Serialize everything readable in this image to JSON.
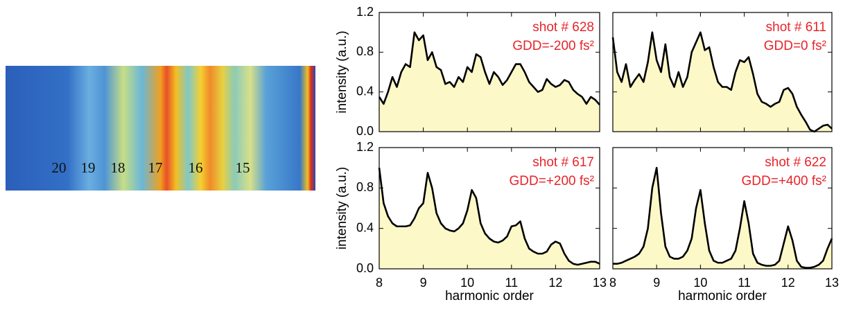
{
  "image": {
    "labels": [
      "20",
      "19",
      "18",
      "17",
      "16",
      "15"
    ]
  },
  "chart_data": [
    {
      "type": "area",
      "annotations": [
        "shot # 628",
        "GDD=-200 fs²"
      ],
      "ylabel": "intensity (a.u.)",
      "color": "#000000",
      "fill": "#fdf8c8",
      "xlim": [
        8,
        13
      ],
      "ylim": [
        0,
        1.2
      ],
      "yticks": [
        {
          "value": 0,
          "label": "0.0"
        },
        {
          "value": 0.4,
          "label": "0.4"
        },
        {
          "value": 0.8,
          "label": "0.8"
        },
        {
          "value": 1.2,
          "label": "1.2"
        }
      ],
      "x": [
        8,
        8.1,
        8.2,
        8.3,
        8.4,
        8.5,
        8.6,
        8.7,
        8.8,
        8.9,
        9,
        9.1,
        9.2,
        9.3,
        9.4,
        9.5,
        9.6,
        9.7,
        9.8,
        9.9,
        10,
        10.1,
        10.2,
        10.3,
        10.4,
        10.5,
        10.6,
        10.7,
        10.8,
        10.9,
        11,
        11.1,
        11.2,
        11.3,
        11.4,
        11.5,
        11.6,
        11.7,
        11.8,
        11.9,
        12,
        12.1,
        12.2,
        12.3,
        12.4,
        12.5,
        12.6,
        12.7,
        12.8,
        12.9,
        13
      ],
      "values": [
        0.35,
        0.28,
        0.4,
        0.55,
        0.45,
        0.6,
        0.68,
        0.65,
        1.0,
        0.92,
        0.97,
        0.72,
        0.8,
        0.65,
        0.62,
        0.48,
        0.5,
        0.45,
        0.55,
        0.5,
        0.65,
        0.6,
        0.78,
        0.75,
        0.6,
        0.48,
        0.6,
        0.55,
        0.47,
        0.52,
        0.6,
        0.68,
        0.68,
        0.6,
        0.5,
        0.45,
        0.4,
        0.42,
        0.53,
        0.48,
        0.45,
        0.47,
        0.52,
        0.5,
        0.42,
        0.38,
        0.35,
        0.28,
        0.35,
        0.32,
        0.27
      ]
    },
    {
      "type": "area",
      "annotations": [
        "shot # 611",
        "GDD=0 fs²"
      ],
      "color": "#000000",
      "fill": "#fdf8c8",
      "xlim": [
        8,
        13
      ],
      "ylim": [
        0,
        1.2
      ],
      "x": [
        8,
        8.1,
        8.2,
        8.3,
        8.4,
        8.5,
        8.6,
        8.7,
        8.8,
        8.9,
        9,
        9.1,
        9.2,
        9.3,
        9.4,
        9.5,
        9.6,
        9.7,
        9.8,
        9.9,
        10,
        10.1,
        10.2,
        10.3,
        10.4,
        10.5,
        10.6,
        10.7,
        10.8,
        10.9,
        11,
        11.1,
        11.2,
        11.3,
        11.4,
        11.5,
        11.6,
        11.7,
        11.8,
        11.9,
        12,
        12.1,
        12.2,
        12.3,
        12.4,
        12.5,
        12.6,
        12.7,
        12.8,
        12.9,
        13
      ],
      "values": [
        0.95,
        0.6,
        0.5,
        0.68,
        0.45,
        0.52,
        0.58,
        0.5,
        0.7,
        1.0,
        0.72,
        0.6,
        0.88,
        0.55,
        0.45,
        0.6,
        0.45,
        0.55,
        0.8,
        0.9,
        1.0,
        0.82,
        0.85,
        0.65,
        0.5,
        0.45,
        0.45,
        0.42,
        0.6,
        0.72,
        0.7,
        0.75,
        0.58,
        0.38,
        0.3,
        0.28,
        0.25,
        0.28,
        0.3,
        0.42,
        0.44,
        0.38,
        0.25,
        0.17,
        0.1,
        0.02,
        0.0,
        0.03,
        0.06,
        0.07,
        0.03
      ]
    },
    {
      "type": "area",
      "annotations": [
        "shot # 617",
        "GDD=+200 fs²"
      ],
      "ylabel": "intensity (a.u.)",
      "xlabel": "harmonic order",
      "color": "#000000",
      "fill": "#fdf8c8",
      "xlim": [
        8,
        13
      ],
      "ylim": [
        0,
        1.2
      ],
      "yticks": [
        {
          "value": 0,
          "label": "0.0"
        },
        {
          "value": 0.4,
          "label": "0.4"
        },
        {
          "value": 0.8,
          "label": "0.8"
        },
        {
          "value": 1.2,
          "label": "1.2"
        }
      ],
      "xticks": [
        8,
        9,
        10,
        11,
        12,
        13
      ],
      "x": [
        8,
        8.1,
        8.2,
        8.3,
        8.4,
        8.5,
        8.6,
        8.7,
        8.8,
        8.9,
        9,
        9.1,
        9.2,
        9.3,
        9.4,
        9.5,
        9.6,
        9.7,
        9.8,
        9.9,
        10,
        10.1,
        10.2,
        10.3,
        10.4,
        10.5,
        10.6,
        10.7,
        10.8,
        10.9,
        11,
        11.1,
        11.2,
        11.3,
        11.4,
        11.5,
        11.6,
        11.7,
        11.8,
        11.9,
        12,
        12.1,
        12.2,
        12.3,
        12.4,
        12.5,
        12.6,
        12.7,
        12.8,
        12.9,
        13
      ],
      "values": [
        1.0,
        0.65,
        0.52,
        0.45,
        0.42,
        0.42,
        0.42,
        0.43,
        0.5,
        0.6,
        0.65,
        0.95,
        0.8,
        0.55,
        0.45,
        0.4,
        0.38,
        0.37,
        0.4,
        0.45,
        0.58,
        0.78,
        0.7,
        0.45,
        0.35,
        0.3,
        0.27,
        0.26,
        0.28,
        0.32,
        0.42,
        0.43,
        0.47,
        0.3,
        0.2,
        0.17,
        0.15,
        0.15,
        0.17,
        0.24,
        0.27,
        0.25,
        0.15,
        0.08,
        0.05,
        0.04,
        0.05,
        0.06,
        0.07,
        0.07,
        0.05
      ]
    },
    {
      "type": "area",
      "annotations": [
        "shot # 622",
        "GDD=+400 fs²"
      ],
      "xlabel": "harmonic order",
      "color": "#000000",
      "fill": "#fdf8c8",
      "xlim": [
        8,
        13
      ],
      "ylim": [
        0,
        1.2
      ],
      "xticks": [
        8,
        9,
        10,
        11,
        12,
        13
      ],
      "x": [
        8,
        8.1,
        8.2,
        8.3,
        8.4,
        8.5,
        8.6,
        8.7,
        8.8,
        8.9,
        9,
        9.1,
        9.2,
        9.3,
        9.4,
        9.5,
        9.6,
        9.7,
        9.8,
        9.9,
        10,
        10.1,
        10.2,
        10.3,
        10.4,
        10.5,
        10.6,
        10.7,
        10.8,
        10.9,
        11,
        11.1,
        11.2,
        11.3,
        11.4,
        11.5,
        11.6,
        11.7,
        11.8,
        11.9,
        12,
        12.1,
        12.2,
        12.3,
        12.4,
        12.5,
        12.6,
        12.7,
        12.8,
        12.9,
        13
      ],
      "values": [
        0.05,
        0.05,
        0.06,
        0.08,
        0.1,
        0.12,
        0.15,
        0.22,
        0.4,
        0.8,
        1.0,
        0.55,
        0.22,
        0.12,
        0.1,
        0.1,
        0.12,
        0.18,
        0.3,
        0.6,
        0.78,
        0.45,
        0.18,
        0.08,
        0.06,
        0.06,
        0.08,
        0.1,
        0.18,
        0.4,
        0.67,
        0.45,
        0.15,
        0.06,
        0.04,
        0.03,
        0.03,
        0.04,
        0.08,
        0.25,
        0.42,
        0.28,
        0.08,
        0.02,
        0.01,
        0.01,
        0.02,
        0.04,
        0.08,
        0.2,
        0.3
      ]
    }
  ]
}
